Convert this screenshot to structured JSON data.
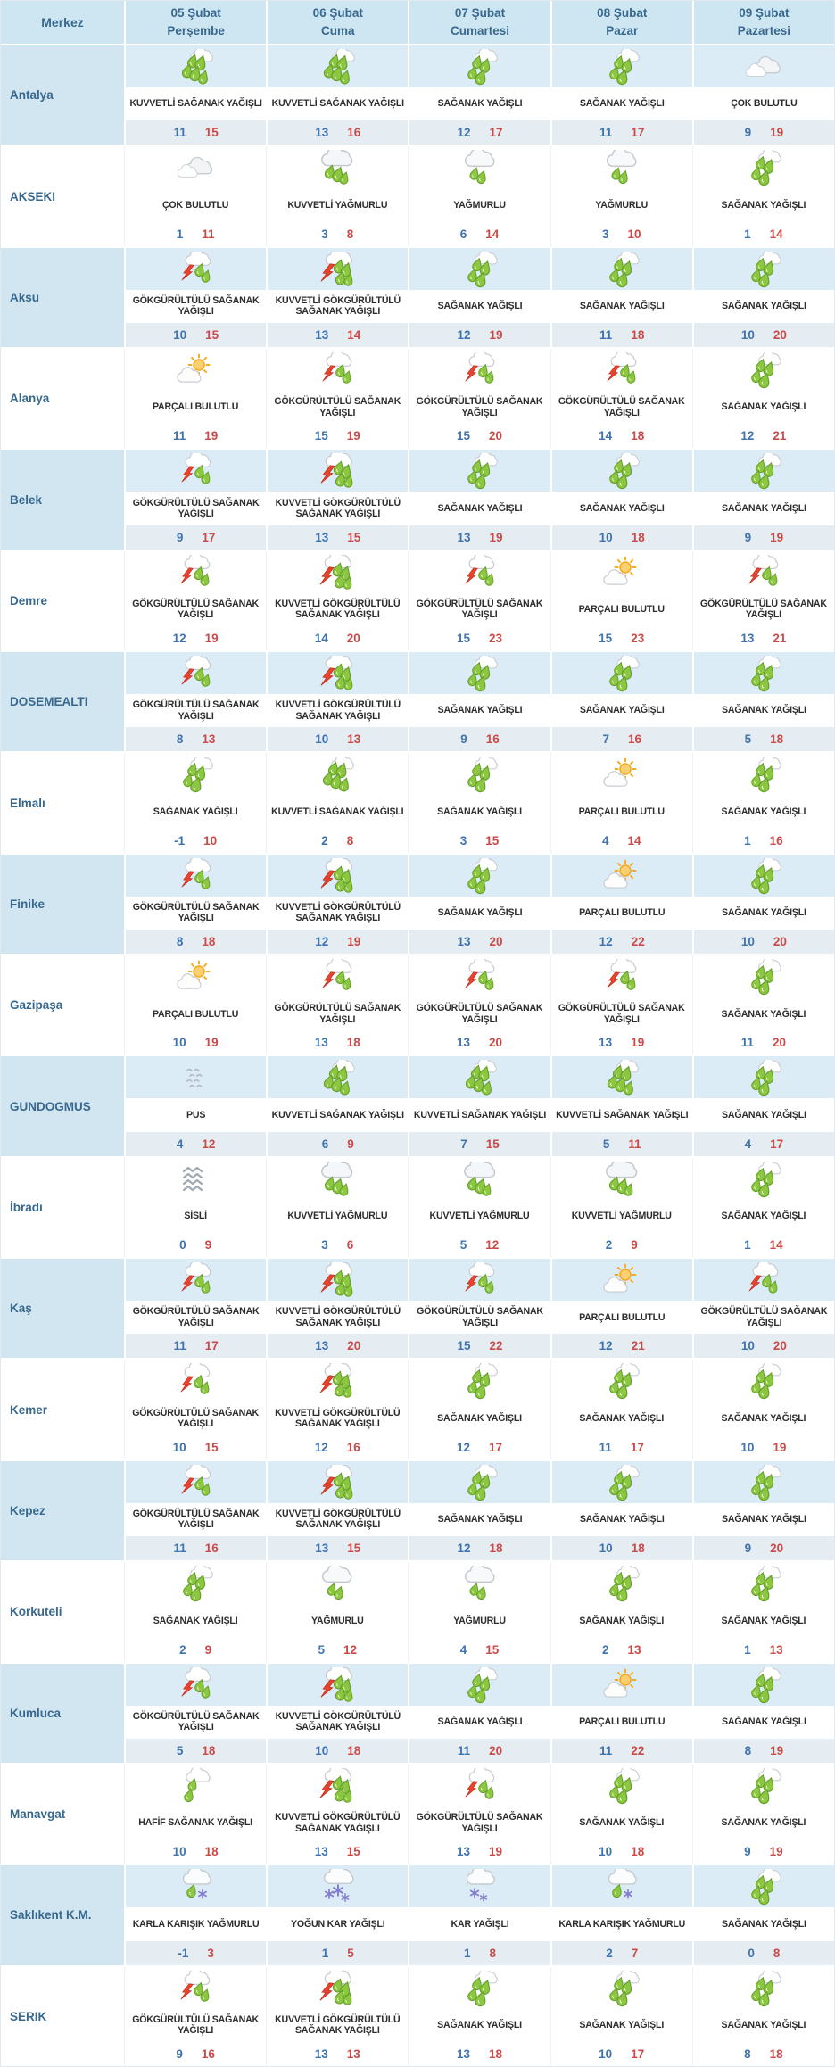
{
  "table": {
    "header": {
      "merkez": "Merkez",
      "days": [
        {
          "date": "05 Şubat",
          "weekday": "Perşembe"
        },
        {
          "date": "06 Şubat",
          "weekday": "Cuma"
        },
        {
          "date": "07 Şubat",
          "weekday": "Cumartesi"
        },
        {
          "date": "08 Şubat",
          "weekday": "Pazar"
        },
        {
          "date": "09 Şubat",
          "weekday": "Pazartesi"
        }
      ]
    },
    "rows": [
      {
        "city": "Antalya",
        "cells": [
          {
            "icon": "kuvvetli-saganak",
            "desc": "KUVVETLİ SAĞANAK YAĞIŞLI",
            "min": "11",
            "max": "15"
          },
          {
            "icon": "kuvvetli-saganak",
            "desc": "KUVVETLİ SAĞANAK YAĞIŞLI",
            "min": "13",
            "max": "16"
          },
          {
            "icon": "saganak",
            "desc": "SAĞANAK YAĞIŞLI",
            "min": "12",
            "max": "17"
          },
          {
            "icon": "saganak",
            "desc": "SAĞANAK YAĞIŞLI",
            "min": "11",
            "max": "17"
          },
          {
            "icon": "cok-bulutlu",
            "desc": "ÇOK BULUTLU",
            "min": "9",
            "max": "19"
          }
        ]
      },
      {
        "city": "AKSEKI",
        "cells": [
          {
            "icon": "cok-bulutlu",
            "desc": "ÇOK BULUTLU",
            "min": "1",
            "max": "11"
          },
          {
            "icon": "kuvvetli-yagmurlu",
            "desc": "KUVVETLİ YAĞMURLU",
            "min": "3",
            "max": "8"
          },
          {
            "icon": "yagmurlu",
            "desc": "YAĞMURLU",
            "min": "6",
            "max": "14"
          },
          {
            "icon": "yagmurlu",
            "desc": "YAĞMURLU",
            "min": "3",
            "max": "10"
          },
          {
            "icon": "saganak",
            "desc": "SAĞANAK YAĞIŞLI",
            "min": "1",
            "max": "14"
          }
        ]
      },
      {
        "city": "Aksu",
        "cells": [
          {
            "icon": "gok-saganak",
            "desc": "GÖKGÜRÜLTÜLÜ SAĞANAK YAĞIŞLI",
            "min": "10",
            "max": "15"
          },
          {
            "icon": "kuvvetli-gok-saganak",
            "desc": "KUVVETLİ GÖKGÜRÜLTÜLÜ SAĞANAK YAĞIŞLI",
            "min": "13",
            "max": "14"
          },
          {
            "icon": "saganak",
            "desc": "SAĞANAK YAĞIŞLI",
            "min": "12",
            "max": "19"
          },
          {
            "icon": "saganak",
            "desc": "SAĞANAK YAĞIŞLI",
            "min": "11",
            "max": "18"
          },
          {
            "icon": "saganak",
            "desc": "SAĞANAK YAĞIŞLI",
            "min": "10",
            "max": "20"
          }
        ]
      },
      {
        "city": "Alanya",
        "cells": [
          {
            "icon": "parcali-bulutlu",
            "desc": "PARÇALI BULUTLU",
            "min": "11",
            "max": "19"
          },
          {
            "icon": "gok-saganak",
            "desc": "GÖKGÜRÜLTÜLÜ SAĞANAK YAĞIŞLI",
            "min": "15",
            "max": "19"
          },
          {
            "icon": "gok-saganak",
            "desc": "GÖKGÜRÜLTÜLÜ SAĞANAK YAĞIŞLI",
            "min": "15",
            "max": "20"
          },
          {
            "icon": "gok-saganak",
            "desc": "GÖKGÜRÜLTÜLÜ SAĞANAK YAĞIŞLI",
            "min": "14",
            "max": "18"
          },
          {
            "icon": "saganak",
            "desc": "SAĞANAK YAĞIŞLI",
            "min": "12",
            "max": "21"
          }
        ]
      },
      {
        "city": "Belek",
        "cells": [
          {
            "icon": "gok-saganak",
            "desc": "GÖKGÜRÜLTÜLÜ SAĞANAK YAĞIŞLI",
            "min": "9",
            "max": "17"
          },
          {
            "icon": "kuvvetli-gok-saganak",
            "desc": "KUVVETLİ GÖKGÜRÜLTÜLÜ SAĞANAK YAĞIŞLI",
            "min": "13",
            "max": "15"
          },
          {
            "icon": "saganak",
            "desc": "SAĞANAK YAĞIŞLI",
            "min": "13",
            "max": "19"
          },
          {
            "icon": "saganak",
            "desc": "SAĞANAK YAĞIŞLI",
            "min": "10",
            "max": "18"
          },
          {
            "icon": "saganak",
            "desc": "SAĞANAK YAĞIŞLI",
            "min": "9",
            "max": "19"
          }
        ]
      },
      {
        "city": "Demre",
        "cells": [
          {
            "icon": "gok-saganak",
            "desc": "GÖKGÜRÜLTÜLÜ SAĞANAK YAĞIŞLI",
            "min": "12",
            "max": "19"
          },
          {
            "icon": "kuvvetli-gok-saganak",
            "desc": "KUVVETLİ GÖKGÜRÜLTÜLÜ SAĞANAK YAĞIŞLI",
            "min": "14",
            "max": "20"
          },
          {
            "icon": "gok-saganak",
            "desc": "GÖKGÜRÜLTÜLÜ SAĞANAK YAĞIŞLI",
            "min": "15",
            "max": "23"
          },
          {
            "icon": "parcali-bulutlu",
            "desc": "PARÇALI BULUTLU",
            "min": "15",
            "max": "23"
          },
          {
            "icon": "gok-saganak",
            "desc": "GÖKGÜRÜLTÜLÜ SAĞANAK YAĞIŞLI",
            "min": "13",
            "max": "21"
          }
        ]
      },
      {
        "city": "DOSEMEALTI",
        "cells": [
          {
            "icon": "gok-saganak",
            "desc": "GÖKGÜRÜLTÜLÜ SAĞANAK YAĞIŞLI",
            "min": "8",
            "max": "13"
          },
          {
            "icon": "kuvvetli-gok-saganak",
            "desc": "KUVVETLİ GÖKGÜRÜLTÜLÜ SAĞANAK YAĞIŞLI",
            "min": "10",
            "max": "13"
          },
          {
            "icon": "saganak",
            "desc": "SAĞANAK YAĞIŞLI",
            "min": "9",
            "max": "16"
          },
          {
            "icon": "saganak",
            "desc": "SAĞANAK YAĞIŞLI",
            "min": "7",
            "max": "16"
          },
          {
            "icon": "saganak",
            "desc": "SAĞANAK YAĞIŞLI",
            "min": "5",
            "max": "18"
          }
        ]
      },
      {
        "city": "Elmalı",
        "cells": [
          {
            "icon": "saganak",
            "desc": "SAĞANAK YAĞIŞLI",
            "min": "-1",
            "max": "10"
          },
          {
            "icon": "kuvvetli-saganak",
            "desc": "KUVVETLİ SAĞANAK YAĞIŞLI",
            "min": "2",
            "max": "8"
          },
          {
            "icon": "saganak",
            "desc": "SAĞANAK YAĞIŞLI",
            "min": "3",
            "max": "15"
          },
          {
            "icon": "parcali-bulutlu",
            "desc": "PARÇALI BULUTLU",
            "min": "4",
            "max": "14"
          },
          {
            "icon": "saganak",
            "desc": "SAĞANAK YAĞIŞLI",
            "min": "1",
            "max": "16"
          }
        ]
      },
      {
        "city": "Finike",
        "cells": [
          {
            "icon": "gok-saganak",
            "desc": "GÖKGÜRÜLTÜLÜ SAĞANAK YAĞIŞLI",
            "min": "8",
            "max": "18"
          },
          {
            "icon": "kuvvetli-gok-saganak",
            "desc": "KUVVETLİ GÖKGÜRÜLTÜLÜ SAĞANAK YAĞIŞLI",
            "min": "12",
            "max": "19"
          },
          {
            "icon": "saganak",
            "desc": "SAĞANAK YAĞIŞLI",
            "min": "13",
            "max": "20"
          },
          {
            "icon": "parcali-bulutlu",
            "desc": "PARÇALI BULUTLU",
            "min": "12",
            "max": "22"
          },
          {
            "icon": "saganak",
            "desc": "SAĞANAK YAĞIŞLI",
            "min": "10",
            "max": "20"
          }
        ]
      },
      {
        "city": "Gazipaşa",
        "cells": [
          {
            "icon": "parcali-bulutlu",
            "desc": "PARÇALI BULUTLU",
            "min": "10",
            "max": "19"
          },
          {
            "icon": "gok-saganak",
            "desc": "GÖKGÜRÜLTÜLÜ SAĞANAK YAĞIŞLI",
            "min": "13",
            "max": "18"
          },
          {
            "icon": "gok-saganak",
            "desc": "GÖKGÜRÜLTÜLÜ SAĞANAK YAĞIŞLI",
            "min": "13",
            "max": "20"
          },
          {
            "icon": "gok-saganak",
            "desc": "GÖKGÜRÜLTÜLÜ SAĞANAK YAĞIŞLI",
            "min": "13",
            "max": "19"
          },
          {
            "icon": "saganak",
            "desc": "SAĞANAK YAĞIŞLI",
            "min": "11",
            "max": "20"
          }
        ]
      },
      {
        "city": "GUNDOGMUS",
        "cells": [
          {
            "icon": "pus",
            "desc": "PUS",
            "min": "4",
            "max": "12"
          },
          {
            "icon": "kuvvetli-saganak",
            "desc": "KUVVETLİ SAĞANAK YAĞIŞLI",
            "min": "6",
            "max": "9"
          },
          {
            "icon": "kuvvetli-saganak",
            "desc": "KUVVETLİ SAĞANAK YAĞIŞLI",
            "min": "7",
            "max": "15"
          },
          {
            "icon": "kuvvetli-saganak",
            "desc": "KUVVETLİ SAĞANAK YAĞIŞLI",
            "min": "5",
            "max": "11"
          },
          {
            "icon": "saganak",
            "desc": "SAĞANAK YAĞIŞLI",
            "min": "4",
            "max": "17"
          }
        ]
      },
      {
        "city": "İbradı",
        "cells": [
          {
            "icon": "sisli",
            "desc": "SİSLİ",
            "min": "0",
            "max": "9"
          },
          {
            "icon": "kuvvetli-yagmurlu",
            "desc": "KUVVETLİ YAĞMURLU",
            "min": "3",
            "max": "6"
          },
          {
            "icon": "kuvvetli-yagmurlu",
            "desc": "KUVVETLİ YAĞMURLU",
            "min": "5",
            "max": "12"
          },
          {
            "icon": "kuvvetli-yagmurlu",
            "desc": "KUVVETLİ YAĞMURLU",
            "min": "2",
            "max": "9"
          },
          {
            "icon": "saganak",
            "desc": "SAĞANAK YAĞIŞLI",
            "min": "1",
            "max": "14"
          }
        ]
      },
      {
        "city": "Kaş",
        "cells": [
          {
            "icon": "gok-saganak",
            "desc": "GÖKGÜRÜLTÜLÜ SAĞANAK YAĞIŞLI",
            "min": "11",
            "max": "17"
          },
          {
            "icon": "kuvvetli-gok-saganak",
            "desc": "KUVVETLİ GÖKGÜRÜLTÜLÜ SAĞANAK YAĞIŞLI",
            "min": "13",
            "max": "20"
          },
          {
            "icon": "gok-saganak",
            "desc": "GÖKGÜRÜLTÜLÜ SAĞANAK YAĞIŞLI",
            "min": "15",
            "max": "22"
          },
          {
            "icon": "parcali-bulutlu",
            "desc": "PARÇALI BULUTLU",
            "min": "12",
            "max": "21"
          },
          {
            "icon": "gok-saganak",
            "desc": "GÖKGÜRÜLTÜLÜ SAĞANAK YAĞIŞLI",
            "min": "10",
            "max": "20"
          }
        ]
      },
      {
        "city": "Kemer",
        "cells": [
          {
            "icon": "gok-saganak",
            "desc": "GÖKGÜRÜLTÜLÜ SAĞANAK YAĞIŞLI",
            "min": "10",
            "max": "15"
          },
          {
            "icon": "kuvvetli-gok-saganak",
            "desc": "KUVVETLİ GÖKGÜRÜLTÜLÜ SAĞANAK YAĞIŞLI",
            "min": "12",
            "max": "16"
          },
          {
            "icon": "saganak",
            "desc": "SAĞANAK YAĞIŞLI",
            "min": "12",
            "max": "17"
          },
          {
            "icon": "saganak",
            "desc": "SAĞANAK YAĞIŞLI",
            "min": "11",
            "max": "17"
          },
          {
            "icon": "saganak",
            "desc": "SAĞANAK YAĞIŞLI",
            "min": "10",
            "max": "19"
          }
        ]
      },
      {
        "city": "Kepez",
        "cells": [
          {
            "icon": "gok-saganak",
            "desc": "GÖKGÜRÜLTÜLÜ SAĞANAK YAĞIŞLI",
            "min": "11",
            "max": "16"
          },
          {
            "icon": "kuvvetli-gok-saganak",
            "desc": "KUVVETLİ GÖKGÜRÜLTÜLÜ SAĞANAK YAĞIŞLI",
            "min": "13",
            "max": "15"
          },
          {
            "icon": "saganak",
            "desc": "SAĞANAK YAĞIŞLI",
            "min": "12",
            "max": "18"
          },
          {
            "icon": "saganak",
            "desc": "SAĞANAK YAĞIŞLI",
            "min": "10",
            "max": "18"
          },
          {
            "icon": "saganak",
            "desc": "SAĞANAK YAĞIŞLI",
            "min": "9",
            "max": "20"
          }
        ]
      },
      {
        "city": "Korkuteli",
        "cells": [
          {
            "icon": "saganak",
            "desc": "SAĞANAK YAĞIŞLI",
            "min": "2",
            "max": "9"
          },
          {
            "icon": "yagmurlu",
            "desc": "YAĞMURLU",
            "min": "5",
            "max": "12"
          },
          {
            "icon": "yagmurlu",
            "desc": "YAĞMURLU",
            "min": "4",
            "max": "15"
          },
          {
            "icon": "saganak",
            "desc": "SAĞANAK YAĞIŞLI",
            "min": "2",
            "max": "13"
          },
          {
            "icon": "saganak",
            "desc": "SAĞANAK YAĞIŞLI",
            "min": "1",
            "max": "13"
          }
        ]
      },
      {
        "city": "Kumluca",
        "cells": [
          {
            "icon": "gok-saganak",
            "desc": "GÖKGÜRÜLTÜLÜ SAĞANAK YAĞIŞLI",
            "min": "5",
            "max": "18"
          },
          {
            "icon": "kuvvetli-gok-saganak",
            "desc": "KUVVETLİ GÖKGÜRÜLTÜLÜ SAĞANAK YAĞIŞLI",
            "min": "10",
            "max": "18"
          },
          {
            "icon": "saganak",
            "desc": "SAĞANAK YAĞIŞLI",
            "min": "11",
            "max": "20"
          },
          {
            "icon": "parcali-bulutlu",
            "desc": "PARÇALI BULUTLU",
            "min": "11",
            "max": "22"
          },
          {
            "icon": "saganak",
            "desc": "SAĞANAK YAĞIŞLI",
            "min": "8",
            "max": "19"
          }
        ]
      },
      {
        "city": "Manavgat",
        "cells": [
          {
            "icon": "hafif-saganak",
            "desc": "HAFİF SAĞANAK YAĞIŞLI",
            "min": "10",
            "max": "18"
          },
          {
            "icon": "kuvvetli-gok-saganak",
            "desc": "KUVVETLİ GÖKGÜRÜLTÜLÜ SAĞANAK YAĞIŞLI",
            "min": "13",
            "max": "15"
          },
          {
            "icon": "gok-saganak",
            "desc": "GÖKGÜRÜLTÜLÜ SAĞANAK YAĞIŞLI",
            "min": "13",
            "max": "19"
          },
          {
            "icon": "saganak",
            "desc": "SAĞANAK YAĞIŞLI",
            "min": "10",
            "max": "18"
          },
          {
            "icon": "saganak",
            "desc": "SAĞANAK YAĞIŞLI",
            "min": "9",
            "max": "19"
          }
        ]
      },
      {
        "city": "Saklıkent K.M.",
        "cells": [
          {
            "icon": "karla-karisik",
            "desc": "KARLA KARIŞIK YAĞMURLU",
            "min": "-1",
            "max": "3"
          },
          {
            "icon": "yogun-kar",
            "desc": "YOĞUN KAR YAĞIŞLI",
            "min": "1",
            "max": "5"
          },
          {
            "icon": "kar",
            "desc": "KAR YAĞIŞLI",
            "min": "1",
            "max": "8"
          },
          {
            "icon": "karla-karisik",
            "desc": "KARLA KARIŞIK YAĞMURLU",
            "min": "2",
            "max": "7"
          },
          {
            "icon": "saganak",
            "desc": "SAĞANAK YAĞIŞLI",
            "min": "0",
            "max": "8"
          }
        ]
      },
      {
        "city": "SERIK",
        "cells": [
          {
            "icon": "gok-saganak",
            "desc": "GÖKGÜRÜLTÜLÜ SAĞANAK YAĞIŞLI",
            "min": "9",
            "max": "16"
          },
          {
            "icon": "kuvvetli-gok-saganak",
            "desc": "KUVVETLİ GÖKGÜRÜLTÜLÜ SAĞANAK YAĞIŞLI",
            "min": "13",
            "max": "13"
          },
          {
            "icon": "saganak",
            "desc": "SAĞANAK YAĞIŞLI",
            "min": "13",
            "max": "18"
          },
          {
            "icon": "saganak",
            "desc": "SAĞANAK YAĞIŞLI",
            "min": "10",
            "max": "17"
          },
          {
            "icon": "saganak",
            "desc": "SAĞANAK YAĞIŞLI",
            "min": "8",
            "max": "18"
          }
        ]
      }
    ]
  },
  "colors": {
    "header_bg": "#cde6f2",
    "row_tint": "#dcecf7",
    "label_tint": "#d2e6f2",
    "temp_band_tint": "#e6edf2",
    "heading_text": "#38688e",
    "min_temp": "#3e73ae",
    "max_temp": "#ca4a49",
    "rain_drop_green": "#8dc63f",
    "lightning_red": "#e8432d",
    "snow_purple": "#837bce"
  }
}
